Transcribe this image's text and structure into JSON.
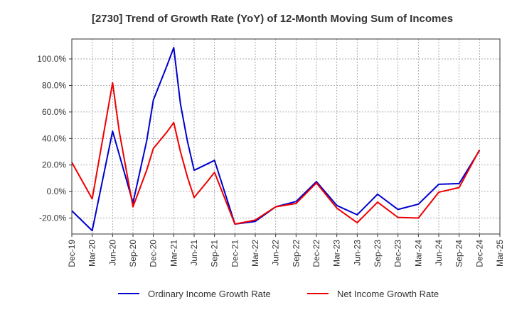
{
  "chart_data": {
    "type": "line",
    "title": "[2730]  Trend of Growth Rate (YoY) of 12-Month Moving Sum of Incomes",
    "x": [
      "Dec-19",
      "Mar-20",
      "Jun-20",
      "Sep-20",
      "Dec-20",
      "Mar-21",
      "Jun-21",
      "Sep-21",
      "Dec-21",
      "Mar-22",
      "Jun-22",
      "Sep-22",
      "Dec-22",
      "Mar-23",
      "Jun-23",
      "Sep-23",
      "Dec-23",
      "Mar-24",
      "Jun-24",
      "Sep-24",
      "Dec-24",
      "Mar-25"
    ],
    "y_ticks": [
      "100.0%",
      "80.0%",
      "60.0%",
      "40.0%",
      "20.0%",
      "0.0%",
      "-20.0%"
    ],
    "y_tick_values": [
      100,
      80,
      60,
      40,
      20,
      0,
      -20
    ],
    "ylim": [
      -32,
      115
    ],
    "grid": true,
    "legend_position": "bottom",
    "series": [
      {
        "name": "Ordinary Income Growth Rate",
        "color": "#0000cc",
        "x": [
          0,
          1,
          2,
          3,
          3.67,
          4,
          4.67,
          5,
          5.33,
          5.67,
          6,
          7,
          8,
          9,
          10,
          11,
          12,
          13,
          14,
          15,
          16,
          17,
          18,
          19,
          20
        ],
        "values": [
          -14.5,
          -29.5,
          45.5,
          -8.5,
          38,
          69,
          95,
          108.5,
          66,
          38,
          16,
          23.5,
          -24.5,
          -22.5,
          -11.5,
          -7.5,
          7.5,
          -10.5,
          -17.5,
          -2,
          -13.5,
          -9.5,
          5.5,
          6,
          31
        ]
      },
      {
        "name": "Net Income Growth Rate",
        "color": "#ee0000",
        "x": [
          0,
          1,
          2,
          2.33,
          3,
          3.67,
          4,
          4.67,
          5,
          5.33,
          5.67,
          6,
          6.67,
          7,
          8,
          9,
          10,
          11,
          12,
          13,
          14,
          15,
          16,
          17,
          18,
          19,
          20
        ],
        "values": [
          22,
          -5.5,
          82,
          45,
          -11.5,
          16,
          32.5,
          45,
          52,
          30,
          11,
          -4.5,
          8,
          14.5,
          -24.5,
          -21.5,
          -11.5,
          -9,
          6.5,
          -12.5,
          -23.5,
          -8,
          -19.5,
          -20,
          -0.5,
          3,
          31.5
        ]
      }
    ]
  }
}
